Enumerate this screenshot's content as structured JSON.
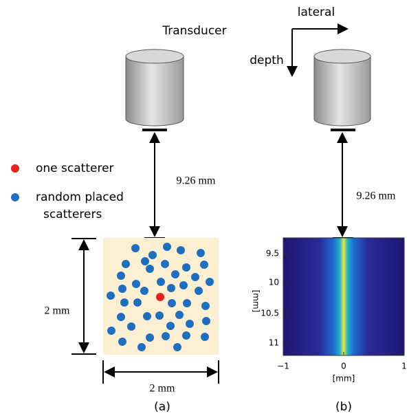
{
  "transducer_label": "Transducer",
  "orientation": {
    "lateral": "lateral",
    "depth": "depth"
  },
  "legend": {
    "one": "one scatterer",
    "random": [
      "random placed",
      "scatterers"
    ]
  },
  "panel_a": {
    "distance": "9.26 mm",
    "height": "2 mm",
    "width": "2 mm",
    "caption": "(a)"
  },
  "panel_b": {
    "distance": "9.26 mm",
    "yticks": [
      "9.5",
      "10",
      "10.5",
      "11"
    ],
    "xticks": [
      "−1",
      "0",
      "1"
    ],
    "xlabel": "[mm]",
    "ylabel": "[mm]",
    "caption": "(b)"
  }
}
